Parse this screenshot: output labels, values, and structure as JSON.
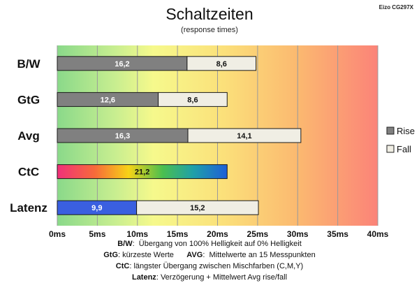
{
  "chart_data": {
    "type": "bar",
    "stacked": true,
    "orientation": "horizontal",
    "title": "Schaltzeiten",
    "subtitle": "(response times)",
    "model": "Eizo CG297X",
    "categories": [
      "B/W",
      "GtG",
      "Avg",
      "CtC",
      "Latenz"
    ],
    "series": [
      {
        "name": "Rise",
        "values": [
          16.2,
          12.6,
          16.3,
          21.2,
          9.9
        ],
        "color": "#808080"
      },
      {
        "name": "Fall",
        "values": [
          8.6,
          8.6,
          14.1,
          null,
          15.2
        ],
        "color": "#f0eee4"
      }
    ],
    "value_labels": {
      "Rise": [
        "16,2",
        "12,6",
        "16,3",
        "21,2",
        "9,9"
      ],
      "Fall": [
        "8,6",
        "8,6",
        "14,1",
        "",
        "15,2"
      ]
    },
    "special_colors": {
      "CtC": "rainbow gradient",
      "Latenz": "#3a5fe0"
    },
    "xlim": [
      0,
      40
    ],
    "xticks": [
      0,
      5,
      10,
      15,
      20,
      25,
      30,
      35,
      40
    ],
    "xtick_labels": [
      "0ms",
      "5ms",
      "10ms",
      "15ms",
      "20ms",
      "25ms",
      "30ms",
      "35ms",
      "40ms"
    ],
    "background": "green-yellow-orange-red gradient",
    "grid": true,
    "legend_position": "right",
    "legend": [
      "Rise",
      "Fall"
    ]
  },
  "notes": [
    {
      "label": "B/W",
      "text": "Übergang von 100% Helligkeit auf 0% Helligkeit"
    },
    {
      "label": "GtG",
      "text": "kürzeste Werte",
      "label2": "AVG",
      "text2": "Mittelwerte an 15 Messpunkten"
    },
    {
      "label": "CtC",
      "text": "längster Übergang zwischen Mischfarben (C,M,Y)"
    },
    {
      "label": "Latenz",
      "text": "Verzögerung + Mittelwert Avg rise/fall"
    }
  ]
}
